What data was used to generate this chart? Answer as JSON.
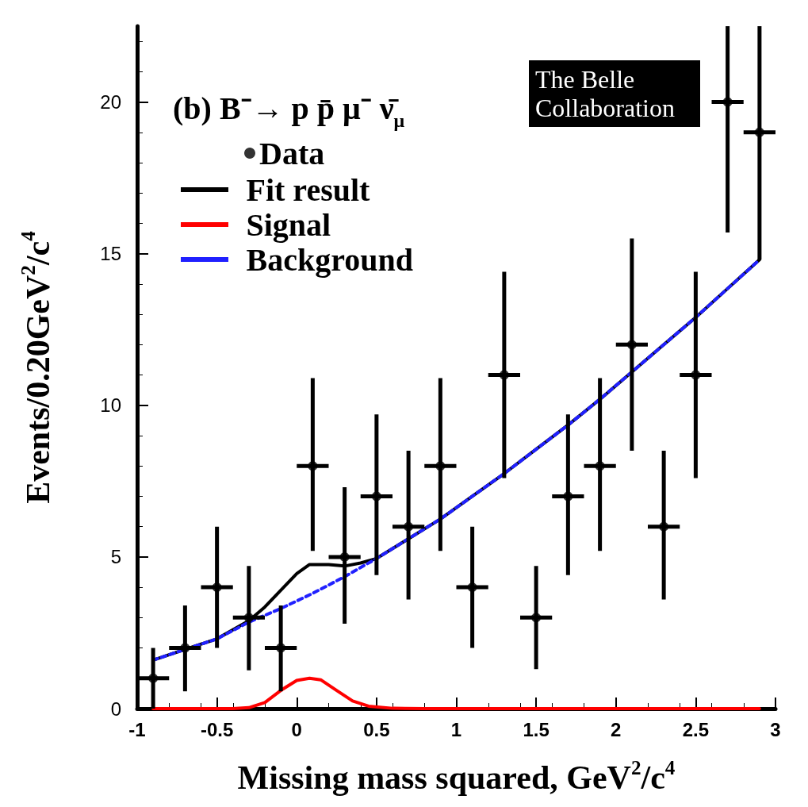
{
  "chart_data": {
    "type": "scatter",
    "title": "(b) B⁻→ p p̄ μ⁻ ν̄$_{μ}$",
    "xlabel": "Missing mass squared, GeV$^{2}$/c$^{4}$",
    "ylabel": "Events/0.20GeV$^{2}$/c$^{4}$",
    "annotations": [
      "The Belle Collaboration"
    ],
    "xlim": [
      -1,
      3
    ],
    "xticks": [
      -1,
      -0.5,
      0,
      0.5,
      1,
      1.5,
      2,
      2.5,
      3
    ],
    "ylim": [
      0,
      22.5
    ],
    "yticks": [
      0,
      5,
      10,
      15,
      20
    ],
    "grid": false,
    "legend": "top left",
    "marker": "circle",
    "x": [
      -0.9,
      -0.7,
      -0.5,
      -0.3,
      -0.1,
      0.1,
      0.3,
      0.5,
      0.7,
      0.9,
      1.1,
      1.3,
      1.5,
      1.7,
      1.9,
      2.1,
      2.3,
      2.5,
      2.7,
      2.9
    ],
    "series": [
      {
        "name": "Data",
        "color": "#000000",
        "values": [
          1,
          2,
          4,
          3,
          2,
          8,
          5,
          7,
          6,
          8,
          4,
          11,
          3,
          7,
          8,
          12,
          6,
          11,
          20,
          19
        ],
        "errors": [
          [
            0,
            2.0
          ],
          [
            0.57,
            3.4
          ],
          [
            2.0,
            6.0
          ],
          [
            1.26,
            4.7
          ],
          [
            0.57,
            3.4
          ],
          [
            5.2,
            10.9
          ],
          [
            2.8,
            7.3
          ],
          [
            4.4,
            9.7
          ],
          [
            3.6,
            8.5
          ],
          [
            5.2,
            10.9
          ],
          [
            2.0,
            6.0
          ],
          [
            7.6,
            14.4
          ],
          [
            1.3,
            4.7
          ],
          [
            4.4,
            9.7
          ],
          [
            5.2,
            10.9
          ],
          [
            8.5,
            15.5
          ],
          [
            3.6,
            8.5
          ],
          [
            7.6,
            14.4
          ],
          [
            15.7,
            22.5
          ],
          [
            14.8,
            22.5
          ]
        ],
        "xerrors": [
          0.1,
          0.1,
          0.1,
          0.1,
          0.1,
          0.1,
          0.1,
          0.1,
          0.1,
          0.1,
          0.1,
          0.1,
          0.1,
          0.1,
          0.1,
          0.1,
          0.1,
          0.1,
          0.1,
          0.1
        ]
      },
      {
        "name": "Fit result",
        "type": "line",
        "color": "#000000",
        "line_style": "solid",
        "marker": "none",
        "x": [
          -0.9,
          -0.7,
          -0.5,
          -0.3,
          -0.2,
          -0.1,
          0,
          0.08,
          0.2,
          0.3,
          0.4,
          0.5,
          0.7,
          0.9,
          1.1,
          1.3,
          1.5,
          1.7,
          1.9,
          2.1,
          2.3,
          2.5,
          2.7,
          2.9
        ],
        "values": [
          1.6,
          1.95,
          2.3,
          2.9,
          3.35,
          3.9,
          4.45,
          4.75,
          4.75,
          4.7,
          4.8,
          4.95,
          5.6,
          6.25,
          7.0,
          7.75,
          8.55,
          9.35,
          10.2,
          11.1,
          12.0,
          12.9,
          13.85,
          14.8
        ]
      },
      {
        "name": "Signal",
        "type": "line",
        "color": "#ff0000",
        "line_style": "solid",
        "marker": "none",
        "x": [
          -0.9,
          -0.4,
          -0.3,
          -0.2,
          -0.1,
          0,
          0.08,
          0.15,
          0.25,
          0.35,
          0.45,
          0.6,
          0.8,
          2.9
        ],
        "values": [
          0,
          0,
          0.03,
          0.2,
          0.6,
          0.93,
          1.0,
          0.95,
          0.6,
          0.25,
          0.08,
          0.01,
          0,
          0
        ]
      },
      {
        "name": "Background",
        "type": "line",
        "color": "#2020ff",
        "line_style": "dashed",
        "marker": "none",
        "x": [
          -0.9,
          -0.7,
          -0.5,
          -0.3,
          -0.1,
          0.1,
          0.3,
          0.5,
          0.7,
          0.9,
          1.1,
          1.3,
          1.5,
          1.7,
          1.9,
          2.1,
          2.3,
          2.5,
          2.7,
          2.9
        ],
        "values": [
          1.6,
          1.95,
          2.3,
          2.85,
          3.3,
          3.8,
          4.35,
          4.95,
          5.6,
          6.25,
          7.0,
          7.75,
          8.55,
          9.35,
          10.2,
          11.1,
          12.0,
          12.9,
          13.85,
          14.8
        ]
      }
    ]
  }
}
